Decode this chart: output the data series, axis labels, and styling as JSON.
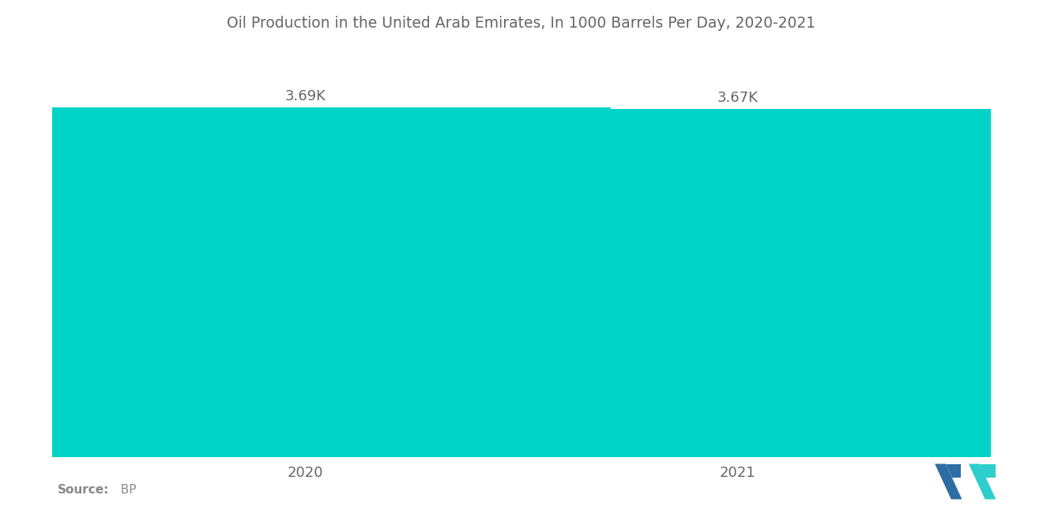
{
  "title": "Oil Production in the United Arab Emirates, In 1000 Barrels Per Day, 2020-2021",
  "categories": [
    "2020",
    "2021"
  ],
  "values": [
    3690,
    3670
  ],
  "value_labels": [
    "3.69K",
    "3.67K"
  ],
  "bar_color": "#00D4C8",
  "background_color": "#ffffff",
  "source_label": "Source:",
  "source_value": "  BP",
  "title_fontsize": 13.5,
  "label_fontsize": 13,
  "tick_fontsize": 13,
  "ylim": [
    0,
    4100
  ],
  "bar_width": 0.65,
  "bar_positions": [
    0.27,
    0.73
  ]
}
